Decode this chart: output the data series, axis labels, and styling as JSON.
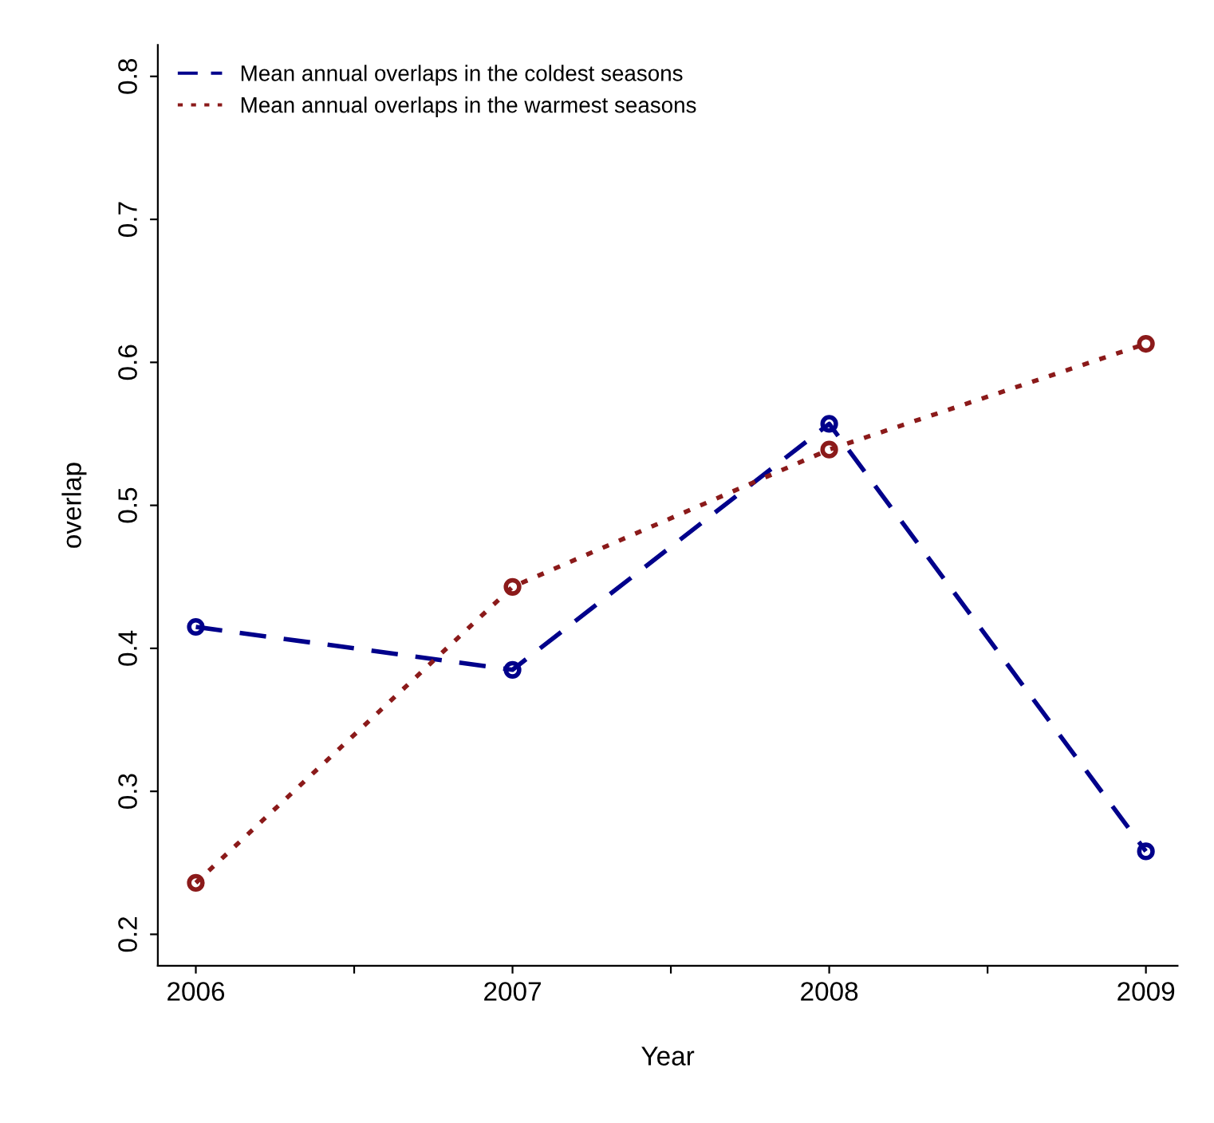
{
  "chart_data": {
    "type": "line",
    "xlabel": "Year",
    "ylabel": "overlap",
    "x": [
      2006,
      2007,
      2008,
      2009
    ],
    "series": [
      {
        "name": "Mean annual overlaps in the coldest seasons",
        "color": "#00008b",
        "line_style": "dashed",
        "values": [
          0.415,
          0.385,
          0.557,
          0.258
        ]
      },
      {
        "name": "Mean annual overlaps in the warmest seasons",
        "color": "#8b1a1a",
        "line_style": "dotted",
        "values": [
          0.236,
          0.443,
          0.539,
          0.613
        ]
      }
    ],
    "marker": "circle",
    "xlim": [
      2005.88,
      2009.1
    ],
    "xticks": [
      2006,
      {
        "value": 2006.5,
        "label": null
      },
      2007,
      {
        "value": 2007.5,
        "label": null
      },
      2008,
      {
        "value": 2008.5,
        "label": null
      },
      2009
    ],
    "ylim": [
      0.178,
      0.822
    ],
    "yticks": [
      0.2,
      0.3,
      0.4,
      0.5,
      0.6,
      0.7,
      0.8
    ],
    "grid": false,
    "legend": "top left"
  }
}
